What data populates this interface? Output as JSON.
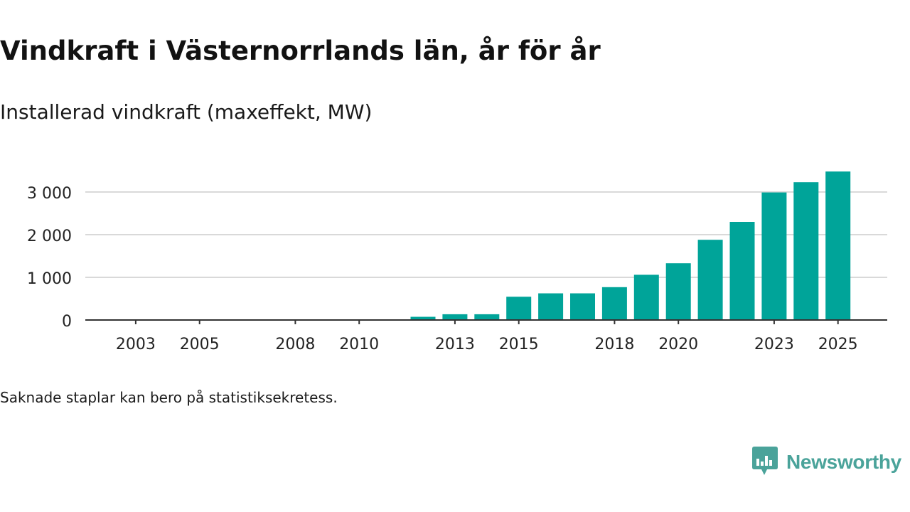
{
  "title": "Vindkraft i Västernorrlands län, år för år",
  "subtitle": "Installerad vindkraft (maxeffekt, MW)",
  "note": "Saknade staplar kan bero på statistiksekretess.",
  "brand": {
    "name": "Newsworthy",
    "icon": "newsworthy-logo-icon",
    "color": "#4aa39a"
  },
  "colors": {
    "bar": "#00a499",
    "grid": "#d9d9d9",
    "axis": "#333333",
    "text": "#222222"
  },
  "chart_data": {
    "type": "bar",
    "title": "Vindkraft i Västernorrlands län, år för år",
    "subtitle": "Installerad vindkraft (maxeffekt, MW)",
    "xlabel": "",
    "ylabel": "",
    "grid": true,
    "ylim": [
      0,
      3600
    ],
    "yticks": [
      0,
      1000,
      2000,
      3000
    ],
    "ytick_labels": [
      "0",
      "1 000",
      "2 000",
      "3 000"
    ],
    "categories": [
      2002,
      2003,
      2004,
      2005,
      2006,
      2007,
      2008,
      2009,
      2010,
      2011,
      2012,
      2013,
      2014,
      2015,
      2016,
      2017,
      2018,
      2019,
      2020,
      2021,
      2022,
      2023,
      2024,
      2025
    ],
    "xtick_labels": [
      "2003",
      "2005",
      "2008",
      "2010",
      "2013",
      "2015",
      "2018",
      "2020",
      "2023",
      "2025"
    ],
    "xtick_years": [
      2003,
      2005,
      2008,
      2010,
      2013,
      2015,
      2018,
      2020,
      2023,
      2025
    ],
    "values": [
      null,
      null,
      null,
      null,
      null,
      null,
      null,
      null,
      null,
      null,
      75,
      135,
      135,
      545,
      625,
      625,
      770,
      1060,
      1330,
      1880,
      2300,
      2990,
      3230,
      3480
    ]
  }
}
